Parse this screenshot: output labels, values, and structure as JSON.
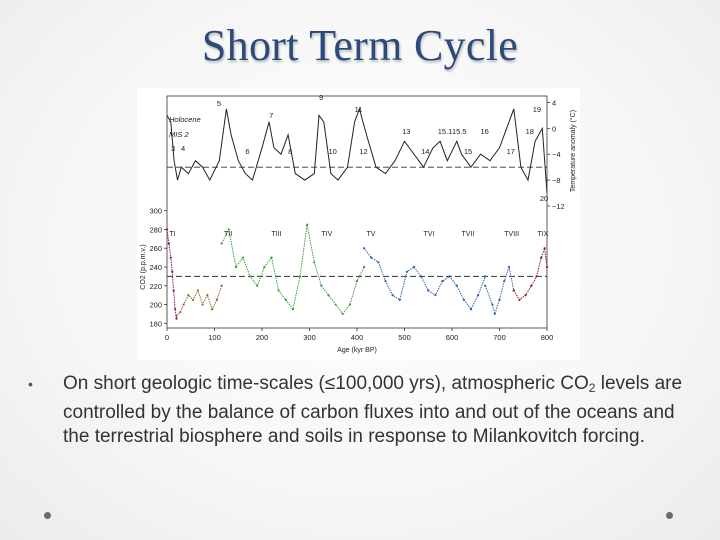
{
  "slide": {
    "title": "Short Term Cycle",
    "bullet": {
      "text_main": "On short geologic time-scales (≤100,000 yrs), atmospheric CO",
      "subscript": "2",
      "text_rest": " levels are controlled by the balance of carbon fluxes into and out of the oceans and the terrestrial biosphere and soils in response to Milankovitch forcing."
    }
  },
  "chart_data": {
    "type": "line",
    "xlabel": "Age (kyr BP)",
    "x_ticks": [
      "0",
      "100",
      "200",
      "300",
      "400",
      "500",
      "600",
      "700",
      "800"
    ],
    "xlim": [
      0,
      800
    ],
    "top_panel": {
      "ylabel": "Temperature anomaly (°C)",
      "y_ticks": [
        "4",
        "0",
        "−4",
        "−8",
        "−12"
      ],
      "ylim": [
        -12,
        5
      ],
      "labels": [
        "Holocene",
        "MIS 2",
        "3",
        "4",
        "5",
        "6",
        "7",
        "8",
        "9",
        "10",
        "11",
        "12",
        "13",
        "14",
        "15.1",
        "15.5",
        "15",
        "16",
        "17",
        "18",
        "19",
        "20"
      ],
      "series": [
        {
          "color": "#222222",
          "x": [
            0,
            8,
            15,
            22,
            30,
            45,
            60,
            75,
            90,
            110,
            125,
            135,
            150,
            165,
            180,
            200,
            215,
            225,
            240,
            255,
            270,
            290,
            310,
            320,
            330,
            345,
            360,
            380,
            395,
            405,
            420,
            440,
            460,
            480,
            500,
            520,
            540,
            560,
            575,
            590,
            610,
            620,
            640,
            660,
            680,
            700,
            715,
            730,
            745,
            760,
            775,
            790,
            800
          ],
          "y": [
            2,
            1,
            -5,
            -8,
            -6,
            -7,
            -5,
            -6,
            -8,
            -5,
            3,
            -1,
            -5,
            -7,
            -8,
            -3,
            1,
            -3,
            -4,
            -1,
            -7,
            -8,
            -7,
            2,
            1,
            -7,
            -8,
            -6,
            1,
            3,
            -1,
            -6,
            -7,
            -5,
            -2,
            -4,
            -6,
            -3,
            -2,
            -5,
            -2,
            -4,
            -6,
            -4,
            -5,
            -3,
            0,
            3,
            -6,
            -8,
            -2,
            0,
            -10
          ]
        }
      ],
      "reference_line": -6
    },
    "bottom_panel": {
      "ylabel": "CO2 (p.p.m.v.)",
      "y_ticks": [
        "300",
        "280",
        "260",
        "240",
        "220",
        "200",
        "180"
      ],
      "ylim": [
        175,
        305
      ],
      "terminations": [
        "TI",
        "TII",
        "TIII",
        "TIV",
        "TV",
        "TVI",
        "TVII",
        "TVIII",
        "TIX"
      ],
      "reference_line": 230,
      "series": [
        {
          "color": "#7a1a6e",
          "x": [
            0,
            4,
            8,
            11,
            14,
            17,
            20
          ],
          "y": [
            280,
            265,
            250,
            235,
            215,
            195,
            185
          ]
        },
        {
          "color": "#8a6a2a",
          "x": [
            20,
            28,
            35,
            45,
            55,
            65,
            75,
            85,
            95,
            105,
            115
          ],
          "y": [
            188,
            192,
            200,
            210,
            205,
            215,
            200,
            210,
            195,
            205,
            220
          ]
        },
        {
          "color": "#3c9a3c",
          "x": [
            115,
            130,
            145,
            160,
            175,
            190,
            205,
            220,
            235,
            250,
            265,
            280,
            295,
            310,
            325,
            340,
            355,
            370,
            385,
            400,
            415
          ],
          "y": [
            265,
            280,
            240,
            250,
            230,
            220,
            240,
            250,
            215,
            205,
            195,
            230,
            285,
            245,
            220,
            210,
            200,
            190,
            200,
            225,
            240
          ]
        },
        {
          "color": "#2e5fa8",
          "x": [
            415,
            430,
            445,
            460,
            475,
            490,
            505,
            520,
            535,
            550,
            565,
            580,
            595,
            610,
            625,
            640,
            655,
            670
          ],
          "y": [
            260,
            250,
            245,
            225,
            210,
            205,
            235,
            240,
            230,
            215,
            210,
            225,
            230,
            220,
            205,
            195,
            210,
            230
          ]
        },
        {
          "color": "#3a5fb0",
          "x": [
            670,
            685,
            690,
            700,
            710,
            720,
            730
          ],
          "y": [
            220,
            200,
            190,
            205,
            225,
            240,
            215
          ]
        },
        {
          "color": "#8a1f1f",
          "x": [
            730,
            742,
            755,
            767,
            778,
            788,
            795,
            800
          ],
          "y": [
            215,
            205,
            210,
            220,
            230,
            250,
            260,
            240
          ]
        }
      ]
    }
  }
}
